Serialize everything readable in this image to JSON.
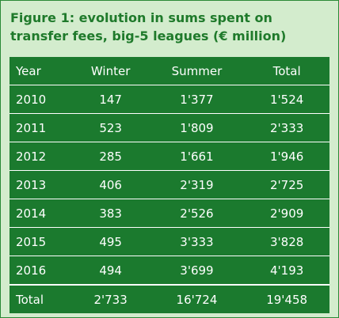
{
  "title": "Figure 1: evolution in sums spent on transfer fees, big-5 leagues (€ million)",
  "table": {
    "headers": [
      "Year",
      "Winter",
      "Summer",
      "Total"
    ],
    "rows": [
      [
        "2010",
        "147",
        "1'377",
        "1'524"
      ],
      [
        "2011",
        "523",
        "1'809",
        "2'333"
      ],
      [
        "2012",
        "285",
        "1'661",
        "1'946"
      ],
      [
        "2013",
        "406",
        "2'319",
        "2'725"
      ],
      [
        "2014",
        "383",
        "2'526",
        "2'909"
      ],
      [
        "2015",
        "495",
        "3'333",
        "3'828"
      ],
      [
        "2016",
        "494",
        "3'699",
        "4'193"
      ]
    ],
    "total_row": [
      "Total",
      "2'733",
      "16'724",
      "19'458"
    ]
  },
  "colors": {
    "title": "#1f7a2b",
    "table_bg": "#1b7a2e",
    "panel_bg": "#d3eccd"
  }
}
